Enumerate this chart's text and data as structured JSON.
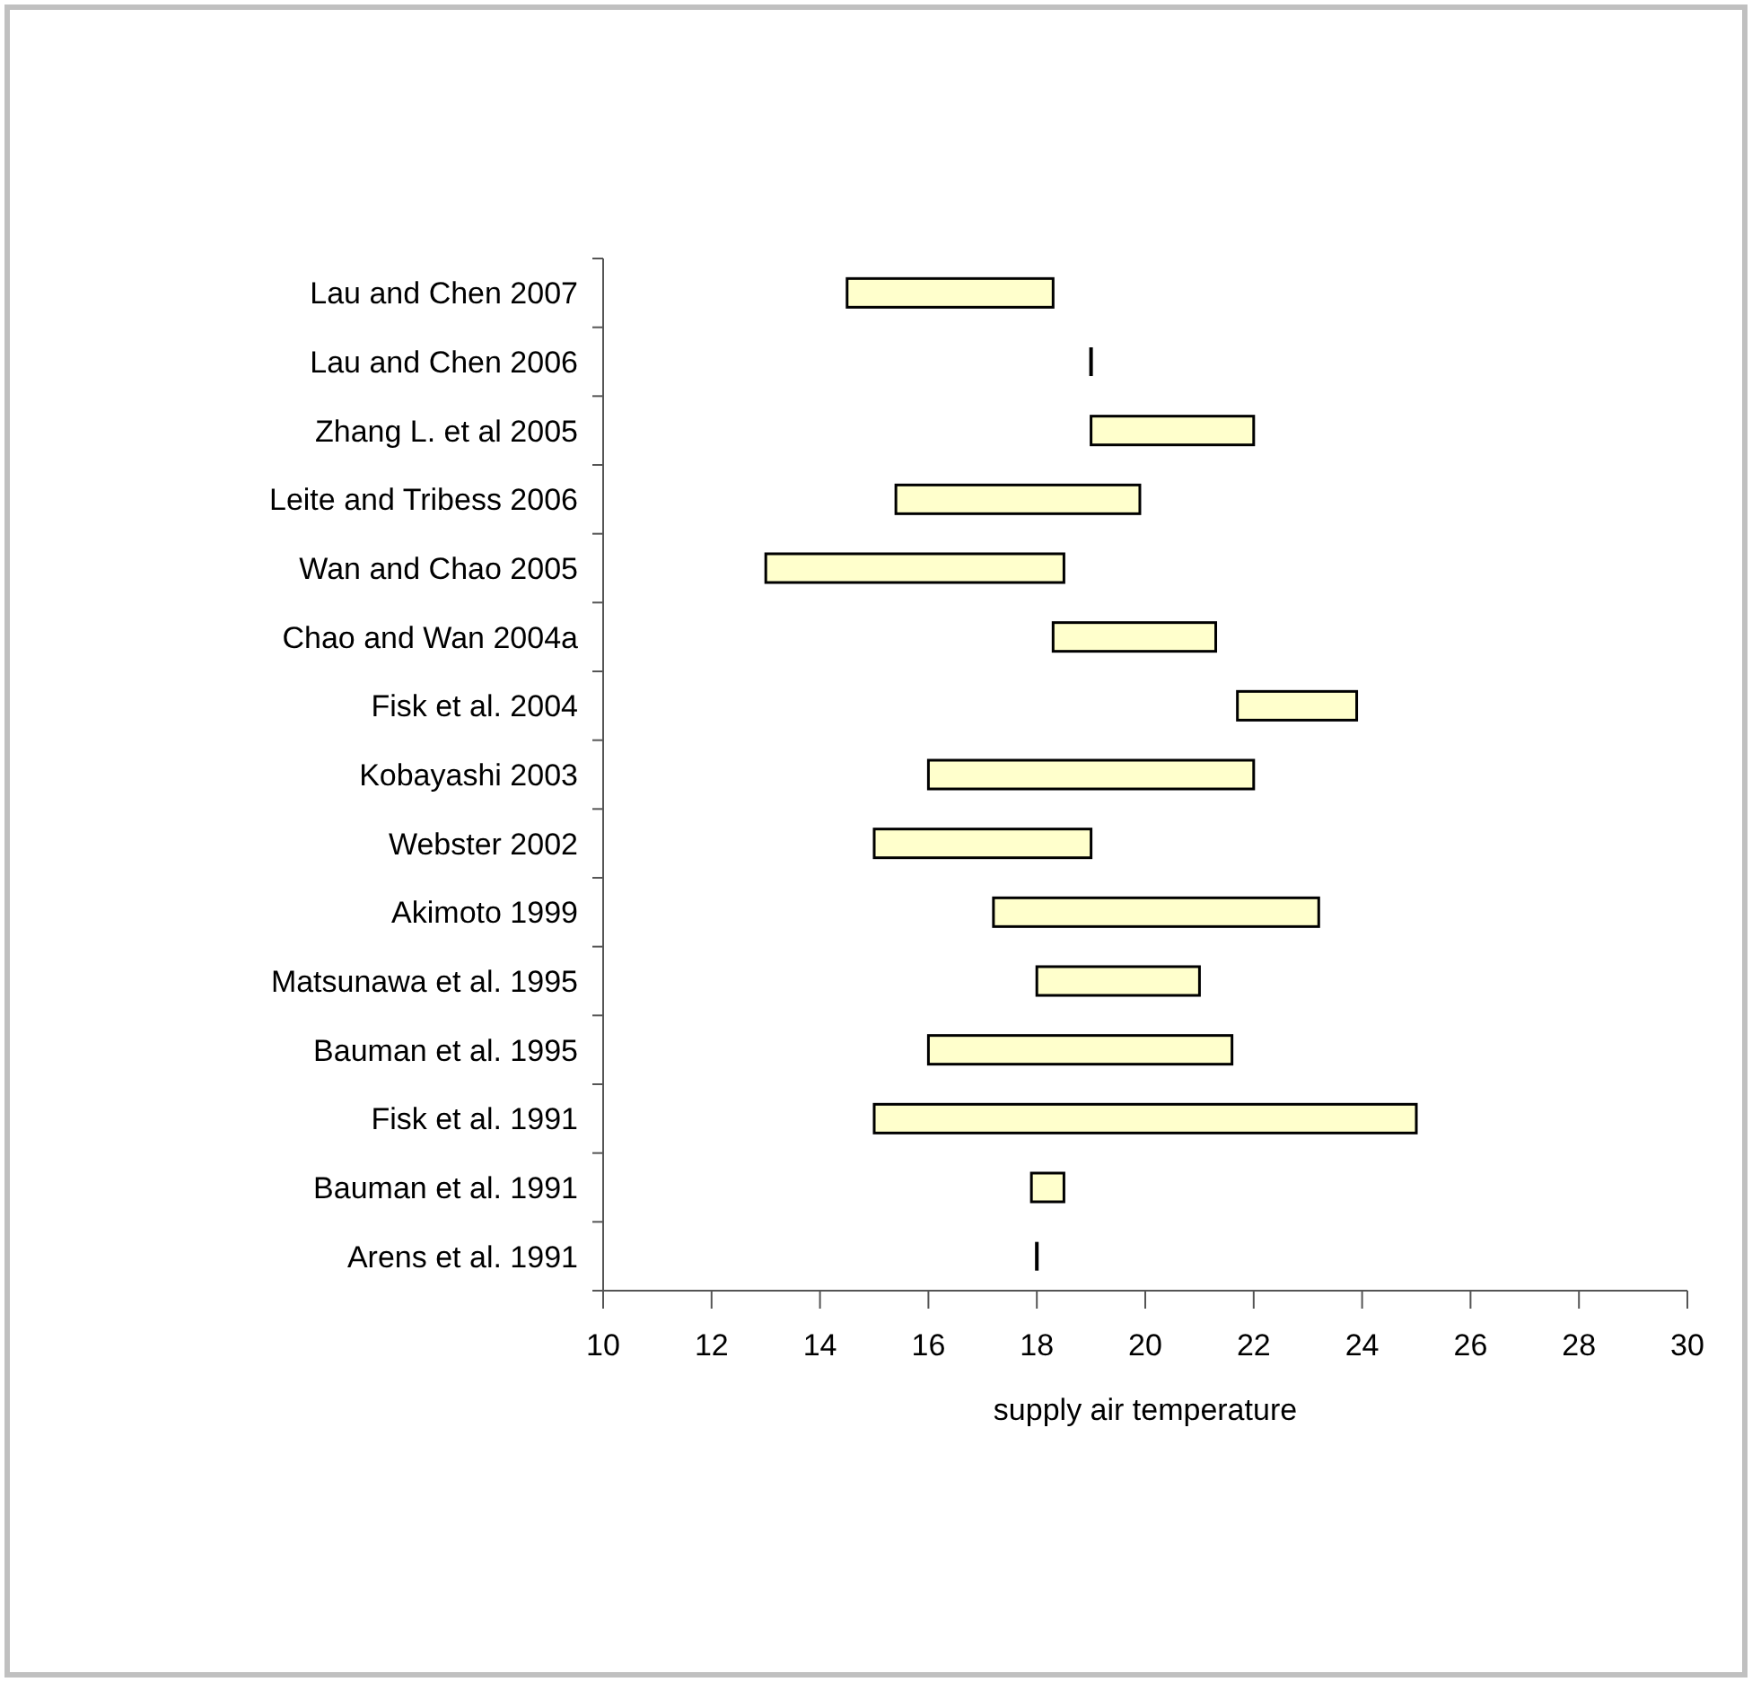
{
  "chart_data": {
    "type": "bar",
    "orientation": "horizontal",
    "xlabel": "supply air temperature",
    "categories": [
      "Lau and Chen 2007",
      "Lau and Chen 2006",
      "Zhang L. et al 2005",
      "Leite and Tribess 2006",
      "Wan and Chao 2005",
      "Chao and Wan 2004a",
      "Fisk et al. 2004",
      "Kobayashi 2003",
      "Webster 2002",
      "Akimoto 1999",
      "Matsunawa et al. 1995",
      "Bauman et al. 1995",
      "Fisk et al. 1991",
      "Bauman et al. 1991",
      "Arens et al. 1991"
    ],
    "base": [
      14.5,
      19,
      19,
      15.4,
      13,
      18.3,
      21.7,
      16,
      15,
      17.2,
      18,
      16,
      15,
      17.9,
      18
    ],
    "values": [
      3.8,
      0,
      3,
      4.5,
      5.5,
      3,
      2.2,
      6,
      4,
      6,
      3,
      5.6,
      10,
      0.6,
      0
    ],
    "colors": [
      "#ffffcc",
      "#000000",
      "#ffffcc",
      "#ffffcc",
      "#ffffcc",
      "#ffffcc",
      "#ffffcc",
      "#ffffcc",
      "#ffffcc",
      "#ffffcc",
      "#ffffcc",
      "#ffffcc",
      "#ffffcc",
      "#ffffcc",
      "#000000"
    ],
    "xlim": [
      10,
      30
    ],
    "xticks": [
      10,
      12,
      14,
      16,
      18,
      20,
      22,
      24,
      26,
      28,
      30
    ],
    "grid": false
  }
}
